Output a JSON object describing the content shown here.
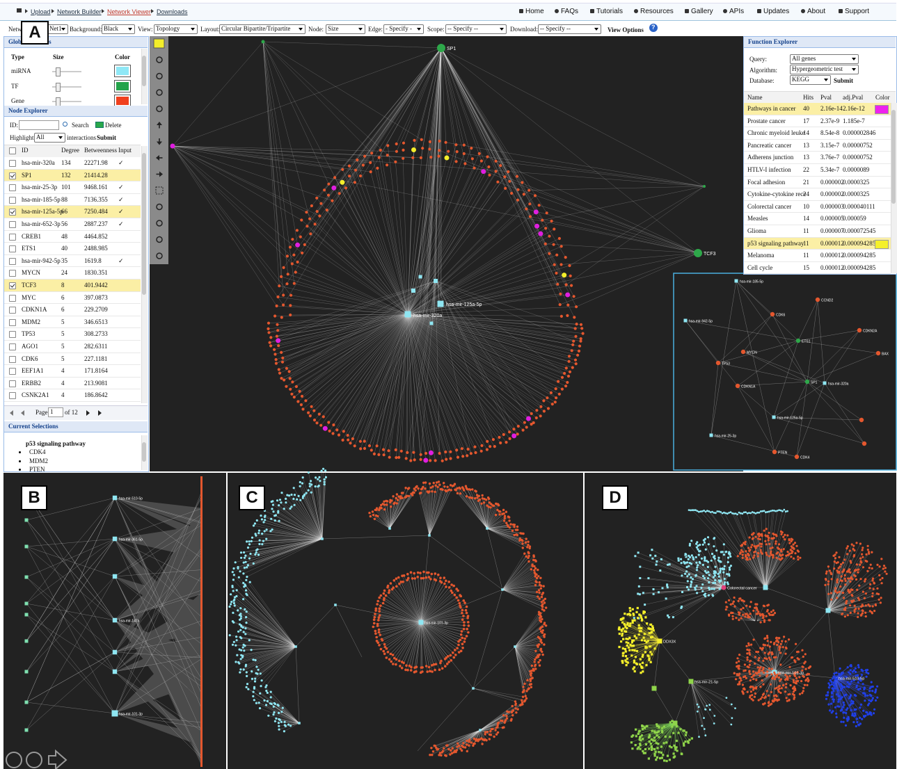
{
  "nav": {
    "breadcrumb": [
      "Upload",
      "Network Builder",
      "Network Viewer",
      "Downloads"
    ],
    "menu": [
      "Home",
      "FAQs",
      "Tutorials",
      "Resources",
      "Gallery",
      "APIs",
      "Updates",
      "About",
      "Support"
    ]
  },
  "controls": [
    {
      "label": "Network:",
      "value": "Net1"
    },
    {
      "label": "Background:",
      "value": "Black"
    },
    {
      "label": "View:",
      "value": "Topology"
    },
    {
      "label": "Layout:",
      "value": "Circular Bipartite/Tripartite"
    },
    {
      "label": "Node:",
      "value": "Size"
    },
    {
      "label": "Edge:",
      "value": "- Specify -"
    },
    {
      "label": "Scope:",
      "value": "-- Specify --"
    },
    {
      "label": "Download:",
      "value": "-- Specify --"
    }
  ],
  "view_options": "View Options",
  "help": "?",
  "panel_labels": [
    "A",
    "B",
    "C",
    "D"
  ],
  "global_features": {
    "title": "Global Features",
    "headers": [
      "Type",
      "Size",
      "Color"
    ],
    "rows": [
      {
        "type": "miRNA",
        "color": "#8fe8f6"
      },
      {
        "type": "TF",
        "color": "#23a34a"
      },
      {
        "type": "Gene",
        "color": "#f0401e"
      }
    ]
  },
  "node_explorer": {
    "title": "Node Explorer",
    "id_label": "ID:",
    "search": "Search",
    "delete": "Delete",
    "highlight": "Highlight",
    "highlight_value": "All",
    "interactions": "interactions",
    "submit": "Submit",
    "headers": [
      "ID",
      "Degree",
      "Betweenness",
      "Input"
    ],
    "rows": [
      {
        "checked": false,
        "id": "hsa-mir-320a",
        "degree": 134,
        "betweenness": 22271.98,
        "input": "✓"
      },
      {
        "checked": true,
        "id": "SP1",
        "degree": 132,
        "betweenness": 21414.28,
        "input": ""
      },
      {
        "checked": false,
        "id": "hsa-mir-25-3p",
        "degree": 101,
        "betweenness": 9468.161,
        "input": "✓"
      },
      {
        "checked": false,
        "id": "hsa-mir-185-5p",
        "degree": 88,
        "betweenness": 7136.355,
        "input": "✓"
      },
      {
        "checked": true,
        "id": "hsa-mir-125a-5p",
        "degree": 66,
        "betweenness": 7250.484,
        "input": "✓"
      },
      {
        "checked": false,
        "id": "hsa-mir-652-3p",
        "degree": 56,
        "betweenness": 2887.237,
        "input": "✓"
      },
      {
        "checked": false,
        "id": "CREB1",
        "degree": 48,
        "betweenness": 4464.852,
        "input": ""
      },
      {
        "checked": false,
        "id": "ETS1",
        "degree": 40,
        "betweenness": 2488.985,
        "input": ""
      },
      {
        "checked": false,
        "id": "hsa-mir-942-5p",
        "degree": 35,
        "betweenness": 1619.8,
        "input": "✓"
      },
      {
        "checked": false,
        "id": "MYCN",
        "degree": 24,
        "betweenness": 1830.351,
        "input": ""
      },
      {
        "checked": true,
        "id": "TCF3",
        "degree": 8,
        "betweenness": 401.9442,
        "input": ""
      },
      {
        "checked": false,
        "id": "MYC",
        "degree": 6,
        "betweenness": 397.0873,
        "input": ""
      },
      {
        "checked": false,
        "id": "CDKN1A",
        "degree": 6,
        "betweenness": 229.2709,
        "input": ""
      },
      {
        "checked": false,
        "id": "MDM2",
        "degree": 5,
        "betweenness": 346.6513,
        "input": ""
      },
      {
        "checked": false,
        "id": "TP53",
        "degree": 5,
        "betweenness": 308.2733,
        "input": ""
      },
      {
        "checked": false,
        "id": "AGO1",
        "degree": 5,
        "betweenness": 282.6311,
        "input": ""
      },
      {
        "checked": false,
        "id": "CDK6",
        "degree": 5,
        "betweenness": 227.1181,
        "input": ""
      },
      {
        "checked": false,
        "id": "EEF1A1",
        "degree": 4,
        "betweenness": 171.8164,
        "input": ""
      },
      {
        "checked": false,
        "id": "ERBB2",
        "degree": 4,
        "betweenness": 213.9081,
        "input": ""
      },
      {
        "checked": false,
        "id": "CSNK2A1",
        "degree": 4,
        "betweenness": 186.8642,
        "input": ""
      }
    ],
    "pager": {
      "page_label": "Page",
      "page": 1,
      "of": "of 12"
    }
  },
  "current_selections": {
    "title": "Current Selections",
    "pathway": "p53 signaling pathway",
    "items": [
      "CDK4",
      "MDM2",
      "PTEN"
    ]
  },
  "function_explorer": {
    "title": "Function Explorer",
    "query_label": "Query:",
    "query": "All genes",
    "algorithm_label": "Algorithm:",
    "algorithm": "Hypergeometric test",
    "database_label": "Database:",
    "database": "KEGG",
    "submit": "Submit",
    "headers": [
      "Name",
      "Hits",
      "Pval",
      "adj.Pval",
      "Color"
    ],
    "rows": [
      {
        "name": "Pathways in cancer",
        "hits": 40,
        "pval": "2.16e-14",
        "adj": "2.16e-12",
        "color": "#ee22ee"
      },
      {
        "name": "Prostate cancer",
        "hits": 17,
        "pval": "2.37e-9",
        "adj": "1.185e-7"
      },
      {
        "name": "Chronic myeloid leuke",
        "hits": 14,
        "pval": "8.54e-8",
        "adj": "0.000002846"
      },
      {
        "name": "Pancreatic cancer",
        "hits": 13,
        "pval": "3.15e-7",
        "adj": "0.00000752"
      },
      {
        "name": "Adherens junction",
        "hits": 13,
        "pval": "3.76e-7",
        "adj": "0.00000752"
      },
      {
        "name": "HTLV-I infection",
        "hits": 22,
        "pval": "5.34e-7",
        "adj": "0.0000089"
      },
      {
        "name": "Focal adhesion",
        "hits": 21,
        "pval": "0.000002",
        "adj": "0.0000325"
      },
      {
        "name": "Cytokine-cytokine rece",
        "hits": 24,
        "pval": "0.000002",
        "adj": "0.0000325"
      },
      {
        "name": "Colorectal cancer",
        "hits": 10,
        "pval": "0.000003",
        "adj": "0.000040111"
      },
      {
        "name": "Measles",
        "hits": 14,
        "pval": "0.000005",
        "adj": "0.000059"
      },
      {
        "name": "Glioma",
        "hits": 11,
        "pval": "0.000007",
        "adj": "0.000072545"
      },
      {
        "name": "p53 signaling pathway",
        "hits": 11,
        "pval": "0.000012",
        "adj": "0.000094285",
        "color": "#f5f02a"
      },
      {
        "name": "Melanoma",
        "hits": 11,
        "pval": "0.000012",
        "adj": "0.000094285"
      },
      {
        "name": "Cell cycle",
        "hits": 15,
        "pval": "0.000012",
        "adj": "0.000094285"
      }
    ]
  },
  "main_network_labels": [
    "SP1",
    "TCF3",
    "hsa-mir-125a-5p",
    "hsa-mir-320a"
  ],
  "inset_labels": [
    "hsa-mir-185-5p",
    "CCND2",
    "CDK6",
    "hsa-mir-942-5p",
    "CDKN2A",
    "ETS1",
    "MYCN",
    "BAX",
    "TP53",
    "SP1",
    "hsa-mir-320a",
    "CDKN1A",
    "hsa-mir-125a-5p",
    "hsa-mir-25-3p",
    "PTEN",
    "CDK4"
  ],
  "panel_b_labels": [
    "hsa-mir-510-5p",
    "hsa-mir-361-5p",
    "hsa-mir-147a",
    "hsa-mir-101-3p"
  ],
  "panel_c_labels": [
    "hsa-mir-101-3p"
  ],
  "panel_d_labels": [
    "Colorectal cancer",
    "DDX3X",
    "hsa-mir-21-5p",
    "hsa-mir-101-3p",
    "hsa-mir-510-5p"
  ]
}
